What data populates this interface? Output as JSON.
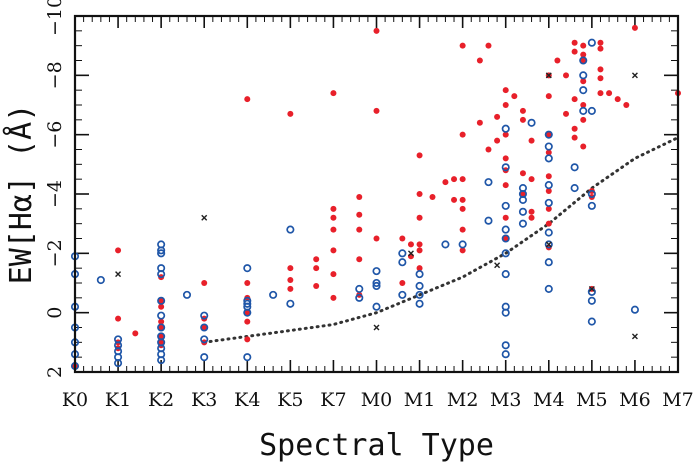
{
  "chart_data": {
    "type": "scatter",
    "title": "",
    "xlabel": "Spectral Type",
    "ylabel": "EW[Hα] (Å)",
    "categories": [
      "K0",
      "K1",
      "K2",
      "K3",
      "K4",
      "K5",
      "K7",
      "M0",
      "M1",
      "M2",
      "M3",
      "M4",
      "M5",
      "M6",
      "M7"
    ],
    "xlim": [
      0,
      14
    ],
    "ylim": [
      2,
      -10
    ],
    "y_inverted": true,
    "yticks": [
      2,
      0,
      -2,
      -4,
      -6,
      -8,
      -10
    ],
    "ytick_labels": [
      "2",
      "0",
      "−2",
      "−4",
      "−6",
      "−8",
      "−10"
    ],
    "colors": {
      "filled": "#e8202a",
      "open": "#1f56a8",
      "cross": "#222222",
      "curve": "#333333"
    },
    "series": [
      {
        "marker": "filled-circle",
        "points": [
          [
            0,
            1.8
          ],
          [
            1,
            -2.1
          ],
          [
            1,
            0.2
          ],
          [
            1,
            1.0
          ],
          [
            1,
            1.2
          ],
          [
            1.4,
            0.7
          ],
          [
            2,
            -1.2
          ],
          [
            2,
            -0.4
          ],
          [
            2,
            -0.2
          ],
          [
            2,
            0.3
          ],
          [
            2,
            0.5
          ],
          [
            2,
            0.8
          ],
          [
            2,
            1.0
          ],
          [
            2,
            1.1
          ],
          [
            3,
            -1.0
          ],
          [
            3,
            0.2
          ],
          [
            3,
            0.5
          ],
          [
            3,
            1.0
          ],
          [
            4,
            -7.2
          ],
          [
            4,
            -1.0
          ],
          [
            4,
            -0.5
          ],
          [
            4,
            0.0
          ],
          [
            4,
            0.3
          ],
          [
            4,
            0.9
          ],
          [
            5,
            -6.7
          ],
          [
            5,
            -1.5
          ],
          [
            5,
            -1.1
          ],
          [
            5,
            -0.8
          ],
          [
            5.6,
            -1.8
          ],
          [
            5.6,
            -1.5
          ],
          [
            5.6,
            -0.9
          ],
          [
            6,
            -7.4
          ],
          [
            6,
            -3.5
          ],
          [
            6,
            -3.2
          ],
          [
            6,
            -2.8
          ],
          [
            6,
            -2.1
          ],
          [
            6,
            -1.3
          ],
          [
            6,
            -0.5
          ],
          [
            6.6,
            -3.9
          ],
          [
            6.6,
            -3.3
          ],
          [
            6.6,
            -2.8
          ],
          [
            6.6,
            -1.8
          ],
          [
            6.6,
            -0.6
          ],
          [
            7,
            -9.5
          ],
          [
            7,
            -6.8
          ],
          [
            7,
            -2.5
          ],
          [
            7.6,
            -2.5
          ],
          [
            7.6,
            -1.0
          ],
          [
            7.8,
            -2.3
          ],
          [
            7.8,
            -1.9
          ],
          [
            8,
            -5.3
          ],
          [
            8,
            -4.0
          ],
          [
            8,
            -3.2
          ],
          [
            8,
            -2.3
          ],
          [
            8,
            -2.1
          ],
          [
            8,
            -1.5
          ],
          [
            8.3,
            -3.9
          ],
          [
            8.6,
            -4.4
          ],
          [
            8.8,
            -4.5
          ],
          [
            8.8,
            -3.8
          ],
          [
            9,
            -9.0
          ],
          [
            9,
            -6.0
          ],
          [
            9,
            -4.5
          ],
          [
            9,
            -3.8
          ],
          [
            9,
            -3.5
          ],
          [
            9,
            -2.8
          ],
          [
            9,
            -2.1
          ],
          [
            9.4,
            -8.5
          ],
          [
            9.4,
            -6.4
          ],
          [
            9.6,
            -9.0
          ],
          [
            9.6,
            -5.5
          ],
          [
            9.8,
            -6.6
          ],
          [
            9.8,
            -5.8
          ],
          [
            10,
            -7.5
          ],
          [
            10,
            -7.0
          ],
          [
            10,
            -6.0
          ],
          [
            10,
            -5.2
          ],
          [
            10,
            -4.8
          ],
          [
            10,
            -4.3
          ],
          [
            10,
            -3.2
          ],
          [
            10,
            -2.5
          ],
          [
            10.2,
            -7.3
          ],
          [
            10.4,
            -6.5
          ],
          [
            10.4,
            -6.8
          ],
          [
            10.4,
            -4.7
          ],
          [
            10.4,
            -4.0
          ],
          [
            10.6,
            -5.8
          ],
          [
            10.6,
            -4.5
          ],
          [
            10.6,
            -3.4
          ],
          [
            10.6,
            -3.2
          ],
          [
            11,
            -8.0
          ],
          [
            11,
            -7.3
          ],
          [
            11,
            -6.0
          ],
          [
            11,
            -5.4
          ],
          [
            11,
            -4.6
          ],
          [
            11,
            -4.1
          ],
          [
            11,
            -3.5
          ],
          [
            11,
            -3.0
          ],
          [
            11,
            -2.2
          ],
          [
            11.2,
            -8.5
          ],
          [
            11.4,
            -8.0
          ],
          [
            11.4,
            -6.7
          ],
          [
            11.6,
            -9.1
          ],
          [
            11.6,
            -8.8
          ],
          [
            11.6,
            -7.2
          ],
          [
            11.6,
            -6.2
          ],
          [
            11.6,
            -5.9
          ],
          [
            11.8,
            -9.0
          ],
          [
            11.8,
            -8.7
          ],
          [
            11.8,
            -8.5
          ],
          [
            11.8,
            -7.8
          ],
          [
            11.8,
            -7.0
          ],
          [
            11.8,
            -6.5
          ],
          [
            11.8,
            -5.6
          ],
          [
            12,
            -4.1
          ],
          [
            12,
            -3.9
          ],
          [
            12,
            -0.8
          ],
          [
            12.2,
            -9.1
          ],
          [
            12.2,
            -8.9
          ],
          [
            12.2,
            -8.2
          ],
          [
            12.2,
            -7.9
          ],
          [
            12.2,
            -7.4
          ],
          [
            12.4,
            -7.4
          ],
          [
            12.6,
            -7.2
          ],
          [
            12.8,
            -7.0
          ],
          [
            13,
            -9.6
          ],
          [
            14,
            -7.4
          ]
        ]
      },
      {
        "marker": "open-circle",
        "points": [
          [
            0,
            -1.9
          ],
          [
            0,
            -1.3
          ],
          [
            0,
            -0.2
          ],
          [
            0,
            0.5
          ],
          [
            0,
            1.0
          ],
          [
            0,
            1.4
          ],
          [
            0,
            1.8
          ],
          [
            0.6,
            -1.1
          ],
          [
            1,
            0.9
          ],
          [
            1,
            1.1
          ],
          [
            1,
            1.3
          ],
          [
            1,
            1.5
          ],
          [
            1,
            1.7
          ],
          [
            2,
            -2.3
          ],
          [
            2,
            -2.1
          ],
          [
            2,
            -2.0
          ],
          [
            2,
            -1.5
          ],
          [
            2,
            -1.3
          ],
          [
            2,
            -0.4
          ],
          [
            2,
            0.1
          ],
          [
            2,
            0.5
          ],
          [
            2,
            0.8
          ],
          [
            2,
            1.0
          ],
          [
            2,
            1.2
          ],
          [
            2,
            1.4
          ],
          [
            2,
            1.6
          ],
          [
            2.6,
            -0.6
          ],
          [
            3,
            0.1
          ],
          [
            3,
            0.5
          ],
          [
            3,
            0.9
          ],
          [
            3,
            1.5
          ],
          [
            4,
            -1.5
          ],
          [
            4,
            -0.4
          ],
          [
            4,
            -0.3
          ],
          [
            4,
            -0.2
          ],
          [
            4,
            0.0
          ],
          [
            4,
            1.5
          ],
          [
            4.6,
            -0.6
          ],
          [
            5,
            -2.8
          ],
          [
            5,
            -0.3
          ],
          [
            7,
            -1.4
          ],
          [
            7,
            -1.0
          ],
          [
            7,
            -0.9
          ],
          [
            7,
            -0.2
          ],
          [
            6.6,
            -0.8
          ],
          [
            6.6,
            -0.5
          ],
          [
            7.6,
            -1.7
          ],
          [
            7.6,
            -0.6
          ],
          [
            7.6,
            -2.0
          ],
          [
            8,
            -1.3
          ],
          [
            8,
            -0.9
          ],
          [
            8,
            -0.6
          ],
          [
            8,
            -0.3
          ],
          [
            8.6,
            -2.3
          ],
          [
            9,
            -2.3
          ],
          [
            9.6,
            -4.4
          ],
          [
            9.6,
            -3.1
          ],
          [
            10,
            -6.2
          ],
          [
            10,
            -4.9
          ],
          [
            10,
            -3.6
          ],
          [
            10,
            -2.8
          ],
          [
            10,
            -2.5
          ],
          [
            10,
            -2.0
          ],
          [
            10,
            -1.3
          ],
          [
            10,
            -0.2
          ],
          [
            10,
            0.0
          ],
          [
            10,
            1.1
          ],
          [
            10,
            1.4
          ],
          [
            10.4,
            -4.2
          ],
          [
            10.4,
            -4.0
          ],
          [
            10.4,
            -3.8
          ],
          [
            10.4,
            -3.4
          ],
          [
            10.4,
            -3.0
          ],
          [
            10.6,
            -6.4
          ],
          [
            11,
            -6.0
          ],
          [
            11,
            -5.6
          ],
          [
            11,
            -5.2
          ],
          [
            11,
            -4.3
          ],
          [
            11,
            -3.7
          ],
          [
            11,
            -2.7
          ],
          [
            11,
            -2.3
          ],
          [
            11,
            -1.7
          ],
          [
            11,
            -0.8
          ],
          [
            11.6,
            -4.9
          ],
          [
            11.6,
            -4.2
          ],
          [
            11.8,
            -8.5
          ],
          [
            11.8,
            -8.0
          ],
          [
            11.8,
            -7.5
          ],
          [
            11.8,
            -6.8
          ],
          [
            12,
            -9.1
          ],
          [
            12,
            -6.8
          ],
          [
            12,
            -4.0
          ],
          [
            12,
            -3.6
          ],
          [
            12,
            -0.7
          ],
          [
            12,
            -0.4
          ],
          [
            12,
            0.3
          ],
          [
            13,
            -0.1
          ]
        ]
      },
      {
        "marker": "cross",
        "points": [
          [
            1,
            -1.3
          ],
          [
            3,
            -3.2
          ],
          [
            7,
            0.5
          ],
          [
            7.8,
            -2.0
          ],
          [
            9.8,
            -1.6
          ],
          [
            11,
            -8.0
          ],
          [
            11,
            -2.3
          ],
          [
            12,
            -0.8
          ],
          [
            13,
            -8.0
          ],
          [
            13,
            0.8
          ]
        ]
      }
    ],
    "curve": {
      "style": "dotted",
      "points": [
        [
          3,
          1.0
        ],
        [
          4,
          0.8
        ],
        [
          5,
          0.6
        ],
        [
          6,
          0.4
        ],
        [
          7,
          0.0
        ],
        [
          8,
          -0.6
        ],
        [
          9,
          -1.2
        ],
        [
          10,
          -2.0
        ],
        [
          11,
          -3.0
        ],
        [
          12,
          -4.2
        ],
        [
          13,
          -5.2
        ],
        [
          14,
          -5.9
        ]
      ]
    }
  }
}
